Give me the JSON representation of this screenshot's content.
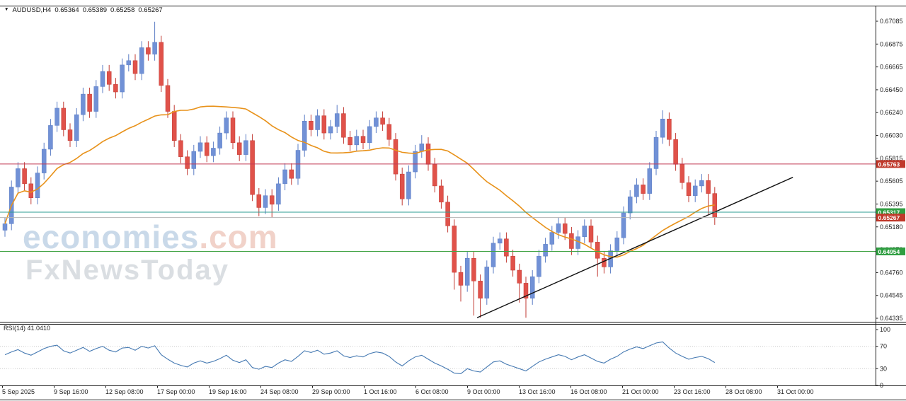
{
  "window": {
    "symbol_period": "AUDUSD,H4",
    "open": "0.65364",
    "high": "0.65389",
    "low": "0.65258",
    "close": "0.65267"
  },
  "watermark": {
    "brand": "economies",
    "brand_suffix": ".com",
    "subbrand": "FxNewsToday"
  },
  "axes": {
    "price_labels": [
      "0.67085",
      "0.66875",
      "0.66665",
      "0.66450",
      "0.66240",
      "0.66030",
      "0.65815",
      "0.65605",
      "0.65395",
      "0.65180",
      "0.64970",
      "0.64760",
      "0.64545",
      "0.64335"
    ],
    "time_labels": [
      "5 Sep 2025",
      "9 Sep 16:00",
      "12 Sep 08:00",
      "17 Sep 00:00",
      "19 Sep 16:00",
      "24 Sep 08:00",
      "29 Sep 00:00",
      "1 Oct 16:00",
      "6 Oct 08:00",
      "9 Oct 00:00",
      "13 Oct 16:00",
      "16 Oct 08:00",
      "21 Oct 00:00",
      "23 Oct 16:00",
      "28 Oct 08:00",
      "31 Oct 00:00"
    ],
    "rsi_labels": [
      "100",
      "70",
      "30",
      "0"
    ]
  },
  "indicator": {
    "label": "RSI(14) 41.0410"
  },
  "chart_data": {
    "type": "candlestick",
    "symbol": "AUDUSD",
    "timeframe": "H4",
    "price_axis": {
      "top": 0.67085,
      "bottom": 0.64335
    },
    "colors": {
      "up_fill": "#7191d6",
      "up_stroke": "#5a7cc4",
      "down_fill": "#e0524a",
      "down_stroke": "#c23a33",
      "ma": "#e8921a",
      "trendline": "#111111",
      "rsi": "#4579b2"
    },
    "ma_period": 26,
    "candles": [
      [
        0.6515,
        0.6527,
        0.6509,
        0.6521
      ],
      [
        0.6521,
        0.6561,
        0.6515,
        0.6555
      ],
      [
        0.6555,
        0.6578,
        0.6549,
        0.6572
      ],
      [
        0.6572,
        0.6578,
        0.6552,
        0.6558
      ],
      [
        0.6558,
        0.6564,
        0.6539,
        0.6545
      ],
      [
        0.6545,
        0.6574,
        0.6539,
        0.6568
      ],
      [
        0.6568,
        0.6596,
        0.6562,
        0.659
      ],
      [
        0.659,
        0.6618,
        0.6584,
        0.6612
      ],
      [
        0.6612,
        0.6634,
        0.6606,
        0.6628
      ],
      [
        0.6628,
        0.6634,
        0.6602,
        0.6608
      ],
      [
        0.6608,
        0.6614,
        0.6592,
        0.6598
      ],
      [
        0.6598,
        0.6628,
        0.6592,
        0.6622
      ],
      [
        0.6622,
        0.6647,
        0.6616,
        0.6641
      ],
      [
        0.6641,
        0.6647,
        0.6619,
        0.6625
      ],
      [
        0.6625,
        0.6654,
        0.6619,
        0.6648
      ],
      [
        0.6648,
        0.6668,
        0.6642,
        0.6662
      ],
      [
        0.6662,
        0.6668,
        0.6644,
        0.665
      ],
      [
        0.665,
        0.6656,
        0.6637,
        0.6643
      ],
      [
        0.6643,
        0.6674,
        0.6637,
        0.6668
      ],
      [
        0.6668,
        0.6678,
        0.6662,
        0.6672
      ],
      [
        0.6672,
        0.6678,
        0.6654,
        0.666
      ],
      [
        0.666,
        0.669,
        0.6654,
        0.6684
      ],
      [
        0.6684,
        0.669,
        0.6672,
        0.6678
      ],
      [
        0.6678,
        0.6708,
        0.6672,
        0.6689
      ],
      [
        0.6689,
        0.6695,
        0.6643,
        0.6649
      ],
      [
        0.6649,
        0.6655,
        0.6619,
        0.6625
      ],
      [
        0.6625,
        0.6631,
        0.6592,
        0.6598
      ],
      [
        0.6598,
        0.6604,
        0.6577,
        0.6583
      ],
      [
        0.6583,
        0.6589,
        0.6566,
        0.6572
      ],
      [
        0.6572,
        0.6594,
        0.6566,
        0.6588
      ],
      [
        0.6588,
        0.6602,
        0.6582,
        0.6596
      ],
      [
        0.6596,
        0.6602,
        0.6578,
        0.6584
      ],
      [
        0.6584,
        0.6597,
        0.6578,
        0.6591
      ],
      [
        0.6591,
        0.6611,
        0.6585,
        0.6605
      ],
      [
        0.6605,
        0.6625,
        0.6599,
        0.6619
      ],
      [
        0.6619,
        0.6625,
        0.659,
        0.6596
      ],
      [
        0.6596,
        0.6602,
        0.6579,
        0.6585
      ],
      [
        0.6585,
        0.6604,
        0.6579,
        0.6598
      ],
      [
        0.6598,
        0.6604,
        0.6542,
        0.6548
      ],
      [
        0.6548,
        0.6554,
        0.6528,
        0.6536
      ],
      [
        0.6536,
        0.6553,
        0.653,
        0.6547
      ],
      [
        0.6547,
        0.6553,
        0.6527,
        0.6539
      ],
      [
        0.6539,
        0.6564,
        0.6533,
        0.6558
      ],
      [
        0.6558,
        0.6577,
        0.6552,
        0.6571
      ],
      [
        0.6571,
        0.6577,
        0.6557,
        0.6563
      ],
      [
        0.6563,
        0.6595,
        0.6557,
        0.6589
      ],
      [
        0.6589,
        0.6622,
        0.6583,
        0.6616
      ],
      [
        0.6616,
        0.6622,
        0.6602,
        0.6608
      ],
      [
        0.6608,
        0.6627,
        0.6602,
        0.6621
      ],
      [
        0.6621,
        0.6627,
        0.6599,
        0.6605
      ],
      [
        0.6605,
        0.6617,
        0.6599,
        0.6611
      ],
      [
        0.6611,
        0.6631,
        0.6605,
        0.6623
      ],
      [
        0.6623,
        0.6629,
        0.6595,
        0.6601
      ],
      [
        0.6601,
        0.6607,
        0.6588,
        0.6594
      ],
      [
        0.6594,
        0.6608,
        0.6588,
        0.6602
      ],
      [
        0.6602,
        0.6608,
        0.659,
        0.6596
      ],
      [
        0.6596,
        0.6617,
        0.659,
        0.6611
      ],
      [
        0.6611,
        0.6625,
        0.6605,
        0.6619
      ],
      [
        0.6619,
        0.6625,
        0.6607,
        0.6613
      ],
      [
        0.6613,
        0.6619,
        0.6593,
        0.6599
      ],
      [
        0.6599,
        0.6605,
        0.6561,
        0.6567
      ],
      [
        0.6567,
        0.6573,
        0.6538,
        0.6544
      ],
      [
        0.6544,
        0.6575,
        0.6538,
        0.6569
      ],
      [
        0.6569,
        0.6594,
        0.6563,
        0.6588
      ],
      [
        0.6588,
        0.6603,
        0.6582,
        0.6595
      ],
      [
        0.6595,
        0.6601,
        0.657,
        0.6576
      ],
      [
        0.6576,
        0.6582,
        0.655,
        0.6556
      ],
      [
        0.6556,
        0.6562,
        0.6535,
        0.6541
      ],
      [
        0.6541,
        0.6547,
        0.6513,
        0.6519
      ],
      [
        0.6519,
        0.6525,
        0.646,
        0.6476
      ],
      [
        0.6476,
        0.6482,
        0.6449,
        0.6464
      ],
      [
        0.6464,
        0.6495,
        0.6458,
        0.6489
      ],
      [
        0.6489,
        0.6495,
        0.6436,
        0.6468
      ],
      [
        0.6468,
        0.6474,
        0.6434,
        0.6452
      ],
      [
        0.6452,
        0.6487,
        0.6446,
        0.6481
      ],
      [
        0.6481,
        0.6509,
        0.6475,
        0.6503
      ],
      [
        0.6503,
        0.6513,
        0.6497,
        0.6507
      ],
      [
        0.6507,
        0.6513,
        0.6485,
        0.6491
      ],
      [
        0.6491,
        0.6497,
        0.6472,
        0.6478
      ],
      [
        0.6478,
        0.6484,
        0.6448,
        0.6466
      ],
      [
        0.6466,
        0.6472,
        0.6434,
        0.6452
      ],
      [
        0.6452,
        0.6478,
        0.6446,
        0.6472
      ],
      [
        0.6472,
        0.6497,
        0.6466,
        0.6491
      ],
      [
        0.6491,
        0.6508,
        0.6485,
        0.6502
      ],
      [
        0.6502,
        0.6519,
        0.6496,
        0.6513
      ],
      [
        0.6513,
        0.6527,
        0.6507,
        0.6521
      ],
      [
        0.6521,
        0.6527,
        0.6506,
        0.6512
      ],
      [
        0.6512,
        0.6518,
        0.6492,
        0.6498
      ],
      [
        0.6498,
        0.6515,
        0.6492,
        0.6509
      ],
      [
        0.6509,
        0.6525,
        0.6503,
        0.6519
      ],
      [
        0.6519,
        0.6525,
        0.6498,
        0.6504
      ],
      [
        0.6504,
        0.651,
        0.6472,
        0.6489
      ],
      [
        0.6489,
        0.6495,
        0.6475,
        0.6481
      ],
      [
        0.6481,
        0.6502,
        0.6475,
        0.6496
      ],
      [
        0.6496,
        0.6514,
        0.649,
        0.6508
      ],
      [
        0.6508,
        0.6537,
        0.6502,
        0.6531
      ],
      [
        0.6531,
        0.6552,
        0.6525,
        0.6546
      ],
      [
        0.6546,
        0.6563,
        0.654,
        0.6557
      ],
      [
        0.6557,
        0.6563,
        0.6543,
        0.6549
      ],
      [
        0.6549,
        0.6578,
        0.6543,
        0.6572
      ],
      [
        0.6572,
        0.6607,
        0.6566,
        0.6601
      ],
      [
        0.6601,
        0.6626,
        0.6595,
        0.6618
      ],
      [
        0.6618,
        0.6624,
        0.6593,
        0.6599
      ],
      [
        0.6599,
        0.6605,
        0.657,
        0.6576
      ],
      [
        0.6576,
        0.6582,
        0.6553,
        0.6559
      ],
      [
        0.6559,
        0.6565,
        0.6541,
        0.6547
      ],
      [
        0.6547,
        0.6562,
        0.6541,
        0.6556
      ],
      [
        0.6556,
        0.6567,
        0.655,
        0.6561
      ],
      [
        0.6561,
        0.6567,
        0.653,
        0.6549
      ],
      [
        0.6549,
        0.6555,
        0.652,
        0.65267
      ]
    ],
    "levels": [
      {
        "label": "0.65763",
        "price": 0.65763,
        "line_color": "#c23b55",
        "badge_color": "#c0392b"
      },
      {
        "label": "0.65317",
        "price": 0.65317,
        "line_color": "#2e9d93",
        "badge_color": "#2f9e41"
      },
      {
        "label": "0.65267",
        "price": 0.65267,
        "line_color": "#b5b5b5",
        "badge_color": "#c0392b"
      },
      {
        "label": "0.64954",
        "price": 0.64954,
        "line_color": "#43a447",
        "badge_color": "#2f9e41"
      }
    ],
    "trendline": {
      "from_index": 72.5,
      "from_price": 0.6434,
      "to_index": 121,
      "to_price": 0.6564
    },
    "rsi": {
      "period": 14,
      "last_value": 41.041,
      "levels": [
        100,
        70,
        30,
        0
      ],
      "values": [
        55,
        60,
        64,
        58,
        54,
        60,
        66,
        70,
        72,
        62,
        58,
        63,
        68,
        61,
        66,
        70,
        63,
        60,
        67,
        68,
        63,
        70,
        67,
        71,
        55,
        47,
        40,
        36,
        33,
        40,
        44,
        40,
        43,
        48,
        54,
        45,
        41,
        46,
        32,
        29,
        34,
        32,
        40,
        46,
        43,
        52,
        62,
        59,
        63,
        56,
        58,
        62,
        53,
        50,
        53,
        51,
        57,
        60,
        58,
        52,
        42,
        35,
        44,
        51,
        54,
        47,
        40,
        35,
        29,
        22,
        21,
        30,
        26,
        24,
        33,
        42,
        44,
        38,
        34,
        30,
        26,
        34,
        42,
        47,
        51,
        55,
        52,
        46,
        51,
        55,
        49,
        43,
        40,
        47,
        52,
        60,
        65,
        69,
        66,
        71,
        76,
        78,
        67,
        58,
        52,
        47,
        50,
        52,
        48,
        41
      ]
    }
  }
}
